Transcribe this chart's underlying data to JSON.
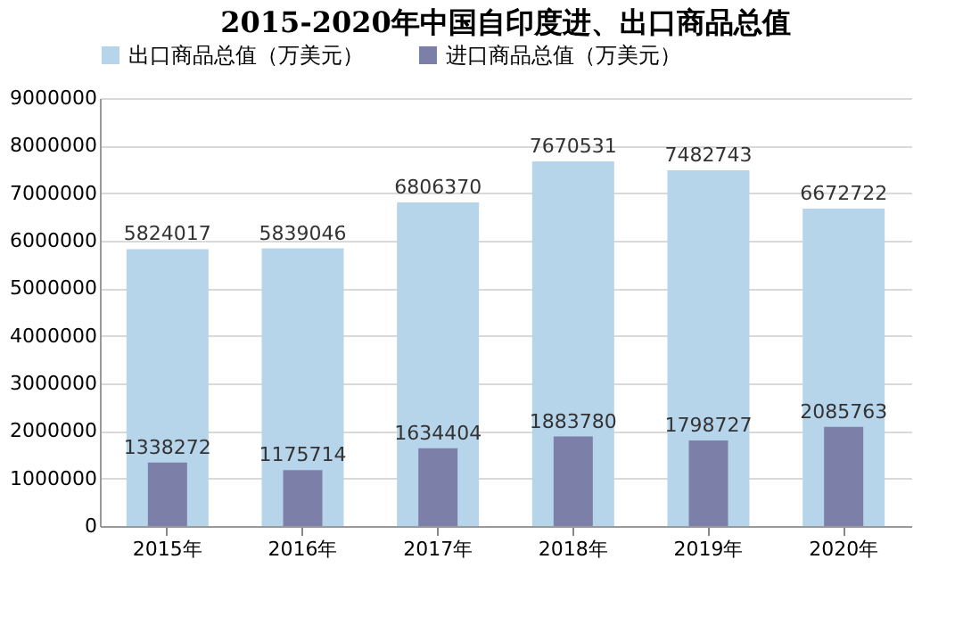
{
  "chart_data": {
    "type": "bar",
    "title": "2015-2020年中国自印度进、出口商品总值",
    "categories": [
      "2015年",
      "2016年",
      "2017年",
      "2018年",
      "2019年",
      "2020年"
    ],
    "series": [
      {
        "name": "出口商品总值（万美元）",
        "color": "#b7d5ea",
        "values": [
          5824017,
          5839046,
          6806370,
          7670531,
          7482743,
          6672722
        ]
      },
      {
        "name": "进口商品总值（万美元）",
        "color": "#7c80a8",
        "values": [
          1338272,
          1175714,
          1634404,
          1883780,
          1798727,
          2085763
        ]
      }
    ],
    "ylim": [
      0,
      9000000
    ],
    "yticks": [
      0,
      1000000,
      2000000,
      3000000,
      4000000,
      5000000,
      6000000,
      7000000,
      8000000,
      9000000
    ],
    "grid": "y",
    "legend": "top",
    "data_labels": true
  }
}
